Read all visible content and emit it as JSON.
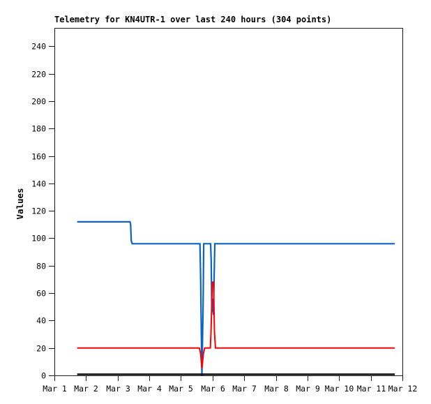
{
  "page": {
    "background": "#ffffff",
    "frame_color": "#1a1a1a"
  },
  "chart_data": {
    "type": "line",
    "title": "Telemetry for KN4UTR-1 over last 240 hours (304 points)",
    "ylabel": "Values",
    "xlabel": "",
    "grid": false,
    "legend": "none",
    "x_unit": "days after Mar 1",
    "x_range_days": [
      0,
      11
    ],
    "y_axis": {
      "range": [
        0,
        253.4
      ],
      "ticks": [
        0,
        20,
        40,
        60,
        80,
        100,
        120,
        140,
        160,
        180,
        200,
        220,
        240
      ]
    },
    "x_axis": {
      "tick_positions_days": [
        0,
        1,
        2,
        3,
        4,
        5,
        6,
        7,
        8,
        9,
        10,
        11
      ],
      "tick_labels": [
        "Mar 1",
        "Mar 2",
        "Mar 3",
        "Mar 4",
        "Mar 5",
        "Mar 6",
        "Mar 7",
        "Mar 8",
        "Mar 9",
        "Mar 10",
        "Mar 11",
        "Mar 12"
      ]
    },
    "series": [
      {
        "name": "telemetry-value-1",
        "color": "#0d62c6",
        "stroke_width": 2.2,
        "points": [
          [
            0.72,
            112
          ],
          [
            2.39,
            112
          ],
          [
            2.41,
            110
          ],
          [
            2.43,
            98
          ],
          [
            2.46,
            96
          ],
          [
            4.6,
            96
          ],
          [
            4.62,
            73
          ],
          [
            4.663,
            0
          ],
          [
            4.7,
            50
          ],
          [
            4.72,
            96
          ],
          [
            4.938,
            96
          ],
          [
            4.956,
            84
          ],
          [
            4.978,
            46
          ],
          [
            5.0,
            56
          ],
          [
            5.025,
            44
          ],
          [
            5.07,
            96
          ],
          [
            10.76,
            96
          ]
        ]
      },
      {
        "name": "telemetry-value-2",
        "color": "#fa0000",
        "stroke_width": 2,
        "points": [
          [
            0.72,
            20
          ],
          [
            4.58,
            20
          ],
          [
            4.62,
            16
          ],
          [
            4.663,
            5
          ],
          [
            4.71,
            16
          ],
          [
            4.75,
            20
          ],
          [
            4.93,
            20
          ],
          [
            4.95,
            32
          ],
          [
            4.99,
            68
          ],
          [
            5.03,
            68
          ],
          [
            5.06,
            32
          ],
          [
            5.09,
            20
          ],
          [
            10.76,
            20
          ]
        ]
      },
      {
        "name": "telemetry-value-3",
        "color": "#000000",
        "stroke_width": 2.4,
        "points": [
          [
            0.72,
            0.8
          ],
          [
            10.76,
            0.8
          ]
        ]
      }
    ]
  }
}
